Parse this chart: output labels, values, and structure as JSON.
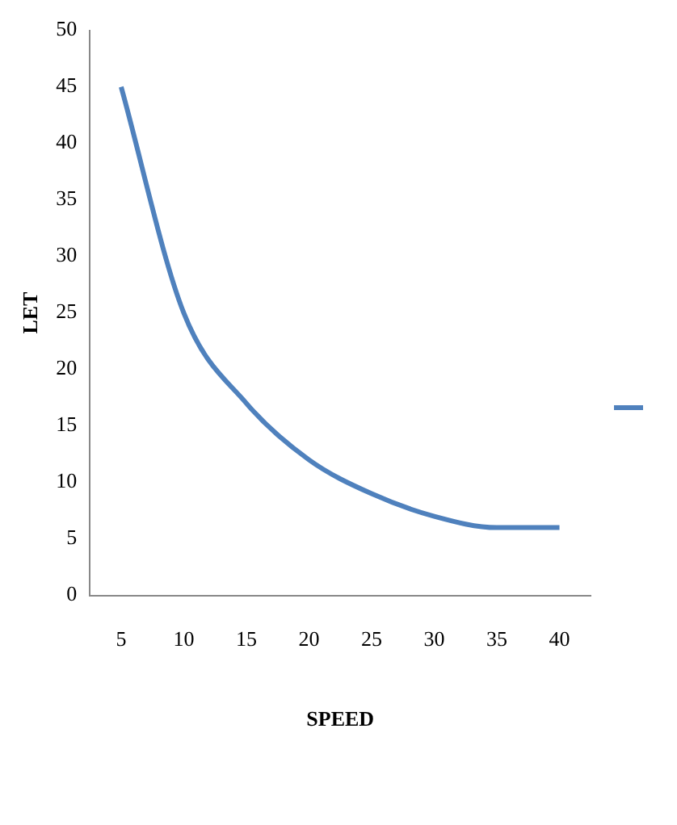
{
  "chart_data": {
    "type": "line",
    "xlabel": "SPEED",
    "ylabel": "LET",
    "categories": [
      "5",
      "10",
      "15",
      "20",
      "25",
      "30",
      "35",
      "40"
    ],
    "series": [
      {
        "color": "#4f81bd",
        "values": [
          45,
          25,
          17,
          12,
          9,
          7,
          6,
          6
        ]
      }
    ],
    "ylim": [
      0,
      50
    ],
    "yticks": [
      0,
      5,
      10,
      15,
      20,
      25,
      30,
      35,
      40,
      45,
      50
    ],
    "grid": false,
    "marker": "none",
    "line_style": "solid"
  }
}
